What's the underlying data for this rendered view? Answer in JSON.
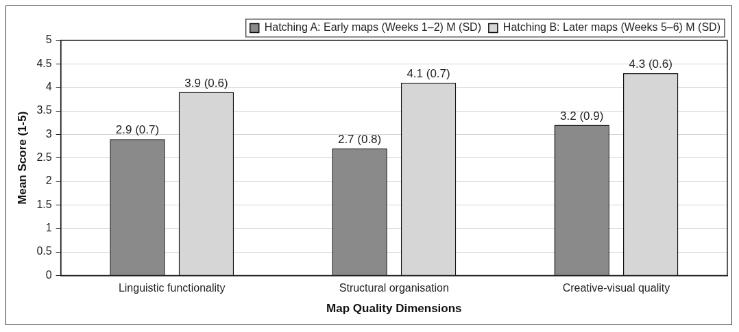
{
  "chart_data": {
    "type": "bar",
    "xlabel": "Map Quality Dimensions",
    "ylabel": "Mean Score (1-5)",
    "categories": [
      "Linguistic functionality",
      "Structural organisation",
      "Creative-visual quality"
    ],
    "series": [
      {
        "name": "Hatching A: Early maps (Weeks 1–2) M (SD)",
        "color": "#8a8a8a",
        "values": [
          2.9,
          2.7,
          3.2
        ],
        "value_labels": [
          "2.9 (0.7)",
          "2.7 (0.8)",
          "3.2 (0.9)"
        ]
      },
      {
        "name": "Hatching B: Later maps (Weeks 5–6) M (SD)",
        "color": "#d6d6d6",
        "values": [
          3.9,
          4.1,
          4.3
        ],
        "value_labels": [
          "3.9 (0.6)",
          "4.1 (0.7)",
          "4.3 (0.6)"
        ]
      }
    ],
    "ylim": [
      0,
      5
    ],
    "yticks": [
      0,
      0.5,
      1,
      1.5,
      2,
      2.5,
      3,
      3.5,
      4,
      4.5,
      5
    ],
    "grid": "y",
    "legend": "top right"
  }
}
